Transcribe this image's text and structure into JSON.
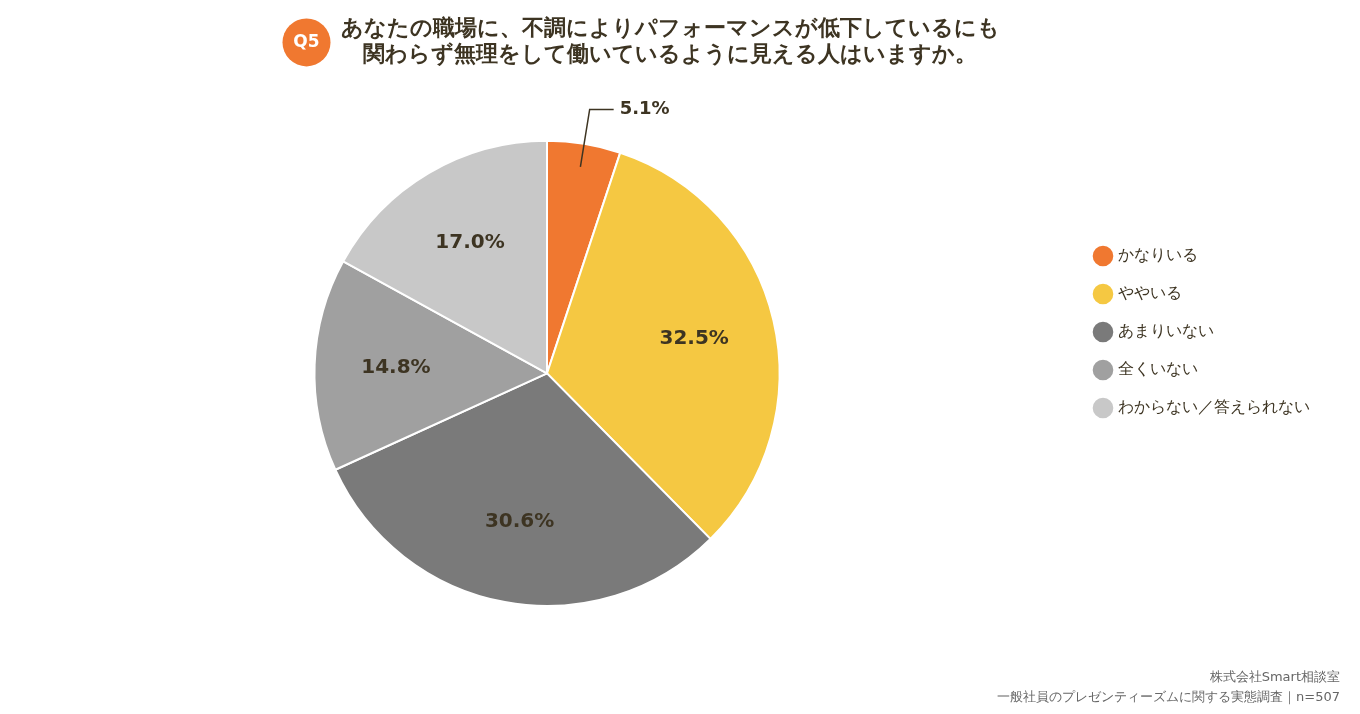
{
  "chart_data": {
    "type": "pie",
    "title": [
      "あなたの職場に、不調によりパフォーマンスが低下しているにも",
      "関わらず無理をして働いているように見える人はいますか。"
    ],
    "annotations": [
      "Q5",
      "株式会社Smart相談室",
      "一般社員のプレゼンティーズムに関する実態調査｜n=507"
    ],
    "categories": [
      "かなりいる",
      "ややいる",
      "あまりいない",
      "全くいない",
      "わからない／答えられない"
    ],
    "values": [
      5.1,
      32.5,
      30.6,
      14.8,
      17.0
    ],
    "value_labels": [
      "5.1%",
      "32.5%",
      "30.6%",
      "14.8%",
      "17.0%"
    ],
    "colors": [
      "#f07830",
      "#f5c842",
      "#7a7a7a",
      "#a0a0a0",
      "#c8c8c8"
    ],
    "data_labels": true,
    "legend": "right"
  }
}
